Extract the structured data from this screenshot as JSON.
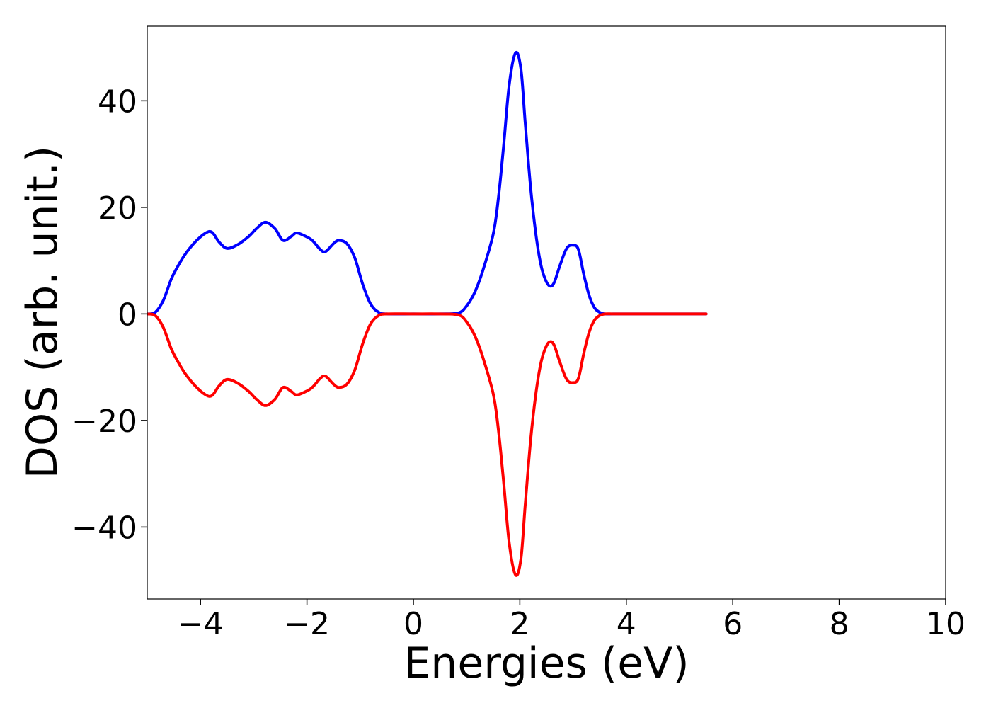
{
  "chart_data": {
    "type": "line",
    "title": "",
    "xlabel": "Energies (eV)",
    "ylabel": "DOS (arb. unit.)",
    "xlim": [
      -5,
      10
    ],
    "ylim": [
      -53.5,
      54
    ],
    "xticks": [
      -4,
      -2,
      0,
      2,
      4,
      6,
      8,
      10
    ],
    "xtick_labels": [
      "−4",
      "−2",
      "0",
      "2",
      "4",
      "6",
      "8",
      "10"
    ],
    "yticks": [
      -40,
      -20,
      0,
      20,
      40
    ],
    "ytick_labels": [
      "−40",
      "−20",
      "0",
      "20",
      "40"
    ],
    "grid": false,
    "legend": "none",
    "series": [
      {
        "color": "#0000ff",
        "x": [
          -5.0,
          -4.85,
          -4.7,
          -4.55,
          -4.45,
          -4.3,
          -4.1,
          -3.9,
          -3.78,
          -3.65,
          -3.5,
          -3.3,
          -3.1,
          -2.95,
          -2.78,
          -2.6,
          -2.45,
          -2.3,
          -2.2,
          -2.05,
          -1.9,
          -1.75,
          -1.65,
          -1.5,
          -1.4,
          -1.25,
          -1.1,
          -0.95,
          -0.8,
          -0.65,
          -0.5,
          0.0,
          0.5,
          0.85,
          1.0,
          1.15,
          1.3,
          1.5,
          1.6,
          1.7,
          1.8,
          1.92,
          2.02,
          2.1,
          2.2,
          2.3,
          2.4,
          2.5,
          2.58,
          2.65,
          2.75,
          2.88,
          3.0,
          3.1,
          3.2,
          3.3,
          3.4,
          3.5,
          3.6,
          3.75,
          4.0,
          4.5,
          5.0,
          5.5
        ],
        "y": [
          0,
          0.3,
          2.5,
          6.5,
          8.5,
          11,
          13.5,
          15.2,
          15.3,
          13.5,
          12.3,
          13,
          14.5,
          16,
          17.2,
          16,
          13.8,
          14.5,
          15.2,
          14.7,
          13.8,
          12.1,
          11.7,
          13.2,
          13.8,
          13.2,
          10.5,
          5.5,
          1.8,
          0.3,
          0,
          0,
          0,
          0.2,
          1.5,
          4,
          8,
          15,
          22,
          32,
          43,
          49,
          46,
          36,
          24,
          15,
          9,
          6,
          5.2,
          6,
          9,
          12.3,
          12.9,
          12.1,
          7.5,
          3.5,
          1.2,
          0.3,
          0,
          0,
          0,
          0,
          0,
          0
        ]
      },
      {
        "color": "#ff0000",
        "x": [
          -5.0,
          -4.85,
          -4.7,
          -4.55,
          -4.45,
          -4.3,
          -4.1,
          -3.9,
          -3.78,
          -3.65,
          -3.5,
          -3.3,
          -3.1,
          -2.95,
          -2.78,
          -2.6,
          -2.45,
          -2.3,
          -2.2,
          -2.05,
          -1.9,
          -1.75,
          -1.65,
          -1.5,
          -1.4,
          -1.25,
          -1.1,
          -0.95,
          -0.8,
          -0.65,
          -0.5,
          0.0,
          0.5,
          0.85,
          1.0,
          1.15,
          1.3,
          1.5,
          1.6,
          1.7,
          1.8,
          1.92,
          2.02,
          2.1,
          2.2,
          2.3,
          2.4,
          2.5,
          2.58,
          2.65,
          2.75,
          2.88,
          3.0,
          3.1,
          3.2,
          3.3,
          3.4,
          3.5,
          3.6,
          3.75,
          4.0,
          4.5,
          5.0,
          5.5
        ],
        "y": [
          0,
          -0.3,
          -2.5,
          -6.5,
          -8.5,
          -11,
          -13.5,
          -15.2,
          -15.3,
          -13.5,
          -12.3,
          -13,
          -14.5,
          -16,
          -17.2,
          -16,
          -13.8,
          -14.5,
          -15.2,
          -14.7,
          -13.8,
          -12.1,
          -11.7,
          -13.2,
          -13.8,
          -13.2,
          -10.5,
          -5.5,
          -1.8,
          -0.3,
          0,
          0,
          0,
          -0.2,
          -1.5,
          -4,
          -8,
          -15,
          -22,
          -32,
          -43,
          -49,
          -46,
          -36,
          -24,
          -15,
          -9,
          -6,
          -5.2,
          -6,
          -9,
          -12.3,
          -12.9,
          -12.1,
          -7.5,
          -3.5,
          -1.2,
          -0.3,
          0,
          0,
          0,
          0,
          0,
          0
        ]
      }
    ]
  }
}
